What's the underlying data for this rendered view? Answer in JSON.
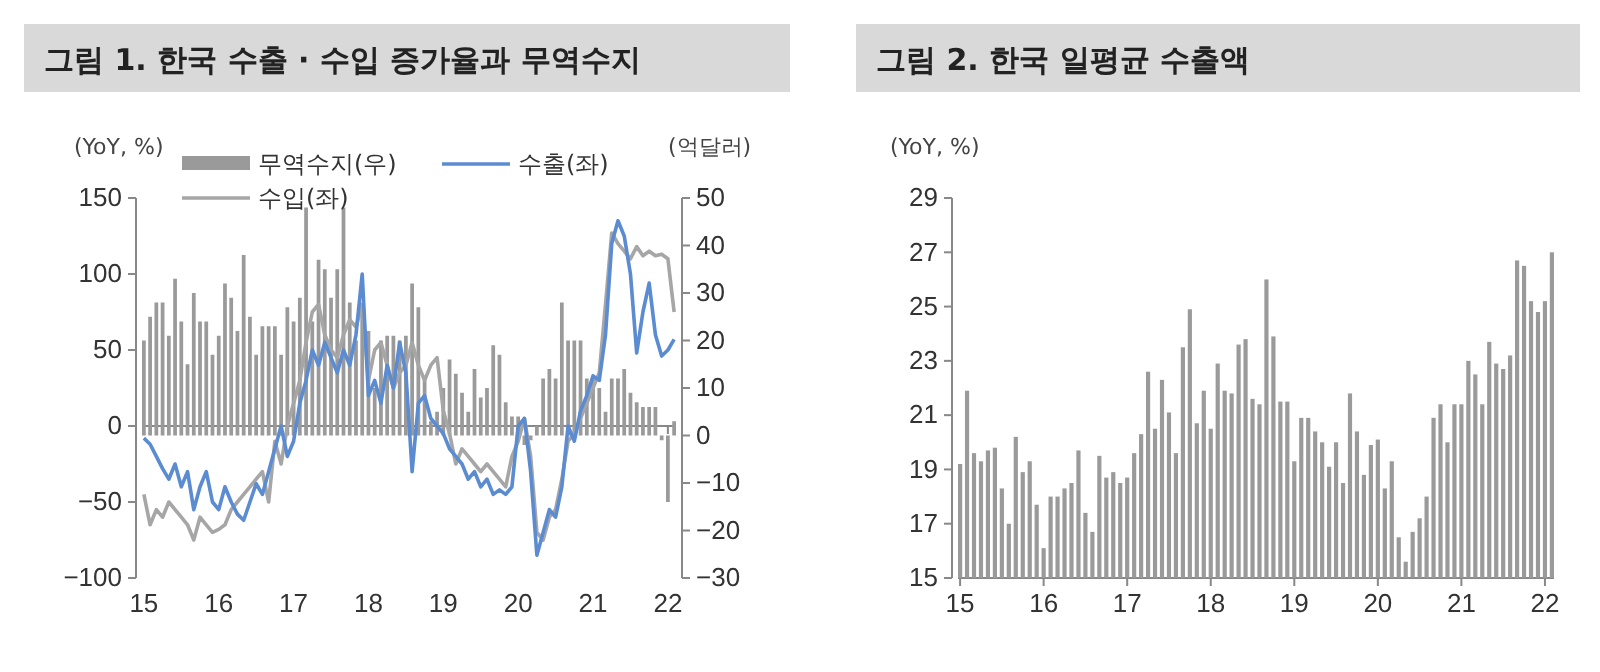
{
  "chart_data": [
    {
      "type": "bar",
      "title": "그림 1. 한국 수출 · 수입 증가율과 무역수지",
      "ylabel": "(YoY, %)",
      "y2label": "(억달러)",
      "categories": [
        "15",
        null,
        null,
        null,
        null,
        null,
        null,
        null,
        null,
        null,
        null,
        null,
        "16",
        null,
        null,
        null,
        null,
        null,
        null,
        null,
        null,
        null,
        null,
        null,
        "17",
        null,
        null,
        null,
        null,
        null,
        null,
        null,
        null,
        null,
        null,
        null,
        "18",
        null,
        null,
        null,
        null,
        null,
        null,
        null,
        null,
        null,
        null,
        null,
        "19",
        null,
        null,
        null,
        null,
        null,
        null,
        null,
        null,
        null,
        null,
        null,
        "20",
        null,
        null,
        null,
        null,
        null,
        null,
        null,
        null,
        null,
        null,
        null,
        "21",
        null,
        null,
        null,
        null,
        null,
        null,
        null,
        null,
        null,
        null,
        null,
        "22",
        null
      ],
      "series": [
        {
          "name": "무역수지(우)",
          "axis": "y2",
          "color": "#9a9a9a",
          "values": [
            20,
            25,
            28,
            28,
            21,
            33,
            24,
            15,
            30,
            24,
            24,
            17,
            21,
            32,
            29,
            22,
            38,
            25,
            17,
            23,
            23,
            23,
            17,
            27,
            24,
            29,
            48,
            24,
            37,
            35,
            29,
            35,
            48,
            28,
            20,
            26,
            22,
            10,
            20,
            21,
            21,
            20,
            21,
            32,
            27,
            12,
            3,
            5,
            10,
            16,
            13,
            9,
            5,
            14,
            8,
            10,
            19,
            17,
            7,
            4,
            4,
            -2,
            -1,
            2,
            12,
            14,
            12,
            28,
            20,
            20,
            20,
            12,
            12,
            10,
            5,
            12,
            12,
            14,
            9,
            7,
            6,
            6,
            6,
            -1,
            -14,
            3
          ]
        },
        {
          "name": "수입(좌)",
          "type": "line",
          "color": "#a6a6a6",
          "values": [
            -45,
            -65,
            -55,
            -60,
            -50,
            -55,
            -60,
            -65,
            -75,
            -60,
            -65,
            -70,
            -68,
            -65,
            -55,
            -50,
            -45,
            -40,
            -35,
            -30,
            -50,
            -10,
            -25,
            0,
            15,
            30,
            55,
            75,
            80,
            60,
            50,
            45,
            60,
            70,
            65,
            80,
            30,
            50,
            55,
            40,
            25,
            35,
            40,
            55,
            40,
            30,
            40,
            45,
            10,
            -5,
            -25,
            -15,
            -20,
            -25,
            -30,
            -25,
            -30,
            -35,
            -40,
            -20,
            -10,
            5,
            -20,
            -70,
            -75,
            -60,
            -55,
            -35,
            -10,
            -5,
            5,
            15,
            25,
            35,
            80,
            127,
            120,
            115,
            110,
            118,
            112,
            115,
            112,
            113,
            110,
            75
          ]
        },
        {
          "name": "수출(좌)",
          "type": "line",
          "color": "#5b8bd0",
          "values": [
            -8,
            -12,
            -20,
            -28,
            -35,
            -25,
            -40,
            -30,
            -55,
            -40,
            -30,
            -50,
            -55,
            -40,
            -50,
            -58,
            -62,
            -50,
            -38,
            -45,
            -30,
            -15,
            0,
            -20,
            -10,
            15,
            30,
            50,
            40,
            55,
            45,
            35,
            50,
            40,
            60,
            100,
            20,
            30,
            15,
            40,
            25,
            55,
            35,
            -30,
            15,
            20,
            5,
            0,
            -5,
            -15,
            -20,
            -25,
            -35,
            -30,
            -40,
            -35,
            -45,
            -42,
            -45,
            -40,
            0,
            5,
            -30,
            -85,
            -70,
            -55,
            -60,
            -40,
            0,
            -10,
            10,
            20,
            33,
            30,
            60,
            120,
            135,
            125,
            100,
            48,
            75,
            94,
            60,
            46,
            50,
            57
          ]
        }
      ],
      "ylim": [
        -100,
        150
      ],
      "yticks": [
        -100,
        -50,
        0,
        50,
        100,
        150
      ],
      "y2lim": [
        -30,
        50
      ],
      "y2ticks": [
        -30,
        -20,
        -10,
        0,
        10,
        20,
        30,
        40,
        50
      ],
      "legend": "top",
      "marker": "none",
      "line_style": "solid"
    },
    {
      "type": "bar",
      "title": "그림 2. 한국 일평균 수출액",
      "ylabel": "(YoY, %)",
      "categories": [
        "15",
        null,
        null,
        null,
        null,
        null,
        null,
        null,
        null,
        null,
        null,
        null,
        "16",
        null,
        null,
        null,
        null,
        null,
        null,
        null,
        null,
        null,
        null,
        null,
        "17",
        null,
        null,
        null,
        null,
        null,
        null,
        null,
        null,
        null,
        null,
        null,
        "18",
        null,
        null,
        null,
        null,
        null,
        null,
        null,
        null,
        null,
        null,
        null,
        "19",
        null,
        null,
        null,
        null,
        null,
        null,
        null,
        null,
        null,
        null,
        null,
        "20",
        null,
        null,
        null,
        null,
        null,
        null,
        null,
        null,
        null,
        null,
        null,
        "21",
        null,
        null,
        null,
        null,
        null,
        null,
        null,
        null,
        null,
        null,
        null,
        "22",
        null
      ],
      "series": [
        {
          "color": "#9a9a9a",
          "values": [
            19.2,
            21.9,
            19.6,
            19.3,
            19.7,
            19.8,
            18.3,
            17.0,
            20.2,
            18.9,
            19.3,
            17.7,
            16.1,
            18.0,
            18.0,
            18.3,
            18.5,
            19.7,
            17.4,
            16.7,
            19.5,
            18.7,
            18.9,
            18.5,
            18.7,
            19.6,
            20.3,
            22.6,
            20.5,
            22.3,
            21.1,
            19.6,
            23.5,
            24.9,
            20.7,
            21.9,
            20.5,
            22.9,
            21.9,
            21.8,
            23.6,
            23.8,
            21.6,
            21.4,
            26.0,
            23.9,
            21.5,
            21.5,
            19.3,
            20.9,
            20.9,
            20.4,
            20.0,
            19.1,
            20.0,
            18.5,
            21.8,
            20.4,
            18.8,
            19.9,
            20.1,
            18.3,
            19.3,
            16.5,
            15.6,
            16.7,
            17.2,
            18.0,
            20.9,
            21.4,
            20.0,
            21.4,
            21.4,
            23.0,
            22.5,
            21.4,
            23.7,
            22.9,
            22.7,
            23.2,
            26.7,
            26.5,
            25.2,
            24.8,
            25.2,
            27.0
          ]
        }
      ],
      "ylim": [
        15,
        29
      ],
      "yticks": [
        15,
        17,
        19,
        21,
        23,
        25,
        27,
        29
      ],
      "legend": false
    }
  ]
}
